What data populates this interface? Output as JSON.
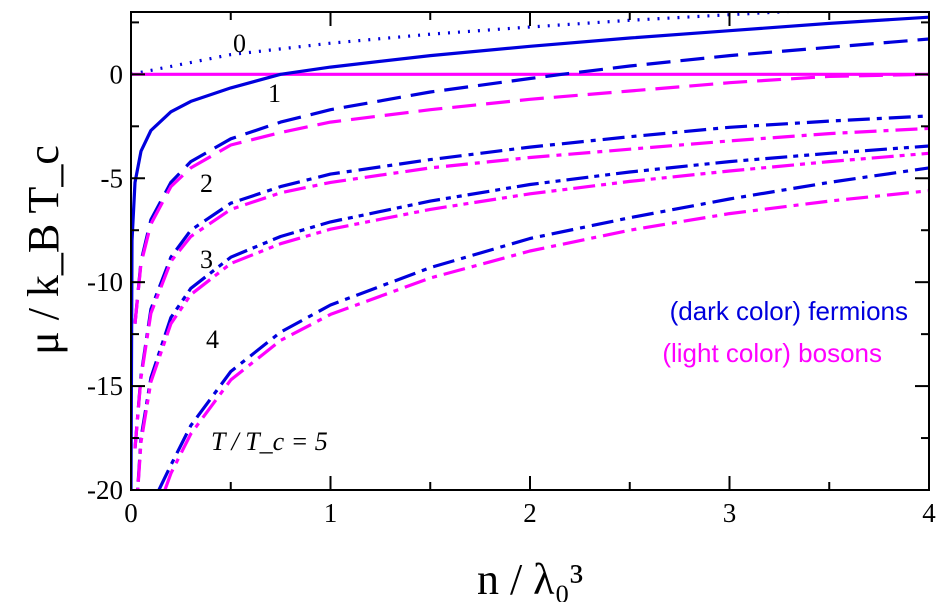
{
  "chart_data": {
    "type": "line",
    "xlabel": "n / λ₀³",
    "ylabel": "μ / k_B T_c",
    "xlim": [
      0,
      4
    ],
    "ylim": [
      -20,
      3
    ],
    "x_ticks": [
      "0",
      "1",
      "2",
      "3",
      "4"
    ],
    "y_ticks": [
      "0",
      "-5",
      "-10",
      "-15",
      "-20"
    ],
    "colors": {
      "fermions": "#0000dd",
      "bosons": "#ff00ff"
    },
    "legend": [
      "(dark color) fermions",
      "(light color) bosons"
    ],
    "curve_labels": [
      "0",
      "1",
      "2",
      "3",
      "4",
      "T / T_c = 5"
    ],
    "series": [
      {
        "T_over_Tc": 0,
        "species": "fermions",
        "style": "dotted",
        "x": [
          0.0,
          0.5,
          1.0,
          1.5,
          2.0,
          2.5,
          3.0,
          3.5,
          4.0
        ],
        "y": [
          0.0,
          0.95,
          1.5,
          1.93,
          2.28,
          2.6,
          2.87,
          3.13,
          3.37
        ]
      },
      {
        "T_over_Tc": 0,
        "species": "bosons",
        "style": "solid",
        "x": [
          0.0,
          4.0
        ],
        "y": [
          0.0,
          0.0
        ]
      },
      {
        "T_over_Tc": 1,
        "species": "fermions",
        "style": "solid",
        "x": [
          0.0,
          0.005,
          0.02,
          0.05,
          0.1,
          0.2,
          0.3,
          0.5,
          0.75,
          1.0,
          1.5,
          2.0,
          2.5,
          3.0,
          3.5,
          4.0
        ],
        "y": [
          -20.0,
          -8.0,
          -5.2,
          -3.7,
          -2.7,
          -1.8,
          -1.3,
          -0.65,
          0.0,
          0.35,
          0.9,
          1.35,
          1.75,
          2.1,
          2.45,
          2.75
        ]
      },
      {
        "T_over_Tc": 2,
        "species": "fermions",
        "style": "dashed",
        "x": [
          0.02,
          0.05,
          0.1,
          0.2,
          0.3,
          0.5,
          0.75,
          1.0,
          1.5,
          2.0,
          2.16,
          2.5,
          3.0,
          3.5,
          4.0
        ],
        "y": [
          -12.0,
          -9.0,
          -7.0,
          -5.2,
          -4.2,
          -3.1,
          -2.3,
          -1.7,
          -0.85,
          -0.2,
          0.0,
          0.4,
          0.9,
          1.3,
          1.7
        ]
      },
      {
        "T_over_Tc": 2,
        "species": "bosons",
        "style": "dashed",
        "x": [
          0.02,
          0.05,
          0.1,
          0.2,
          0.3,
          0.5,
          0.75,
          1.0,
          1.5,
          2.0,
          2.5,
          3.0,
          3.5,
          4.0
        ],
        "y": [
          -12.0,
          -9.1,
          -7.2,
          -5.4,
          -4.5,
          -3.4,
          -2.8,
          -2.3,
          -1.7,
          -1.2,
          -0.8,
          -0.4,
          -0.1,
          0.0
        ]
      },
      {
        "T_over_Tc": 3,
        "species": "fermions",
        "style": "dash-dot",
        "x": [
          0.02,
          0.05,
          0.1,
          0.2,
          0.3,
          0.5,
          0.75,
          1.0,
          1.5,
          2.0,
          2.5,
          3.0,
          3.5,
          4.0
        ],
        "y": [
          -18.0,
          -14.5,
          -11.3,
          -8.8,
          -7.5,
          -6.2,
          -5.4,
          -4.8,
          -4.1,
          -3.5,
          -3.0,
          -2.55,
          -2.25,
          -2.0
        ]
      },
      {
        "T_over_Tc": 3,
        "species": "bosons",
        "style": "dash-dot",
        "x": [
          0.02,
          0.05,
          0.1,
          0.2,
          0.3,
          0.5,
          0.75,
          1.0,
          1.5,
          2.0,
          2.5,
          3.0,
          3.5,
          4.0
        ],
        "y": [
          -18.0,
          -14.6,
          -11.5,
          -9.0,
          -7.8,
          -6.5,
          -5.7,
          -5.2,
          -4.5,
          -4.0,
          -3.6,
          -3.2,
          -2.85,
          -2.6
        ]
      },
      {
        "T_over_Tc": 4,
        "species": "fermions",
        "style": "dash-dot-dot",
        "x": [
          0.02,
          0.05,
          0.1,
          0.2,
          0.3,
          0.5,
          0.75,
          1.0,
          1.5,
          2.0,
          2.5,
          3.0,
          3.5,
          4.0
        ],
        "y": [
          -22.0,
          -17.5,
          -14.6,
          -11.7,
          -10.3,
          -8.8,
          -7.8,
          -7.1,
          -6.1,
          -5.3,
          -4.7,
          -4.2,
          -3.8,
          -3.45
        ]
      },
      {
        "T_over_Tc": 4,
        "species": "bosons",
        "style": "dash-dot-dot",
        "x": [
          0.02,
          0.05,
          0.1,
          0.2,
          0.3,
          0.5,
          0.75,
          1.0,
          1.5,
          2.0,
          2.5,
          3.0,
          3.5,
          4.0
        ],
        "y": [
          -22.0,
          -17.7,
          -14.8,
          -12.0,
          -10.6,
          -9.1,
          -8.15,
          -7.45,
          -6.5,
          -5.75,
          -5.15,
          -4.65,
          -4.2,
          -3.8
        ]
      },
      {
        "T_over_Tc": 5,
        "species": "fermions",
        "style": "dash-dot",
        "x": [
          0.14,
          0.2,
          0.3,
          0.5,
          0.75,
          1.0,
          1.5,
          2.0,
          2.5,
          3.0,
          3.5,
          4.0
        ],
        "y": [
          -20.0,
          -18.8,
          -16.9,
          -14.3,
          -12.4,
          -11.1,
          -9.3,
          -7.9,
          -6.9,
          -6.0,
          -5.2,
          -4.5
        ]
      },
      {
        "T_over_Tc": 5,
        "species": "bosons",
        "style": "dash-dot",
        "x": [
          0.17,
          0.2,
          0.3,
          0.5,
          0.75,
          1.0,
          1.5,
          2.0,
          2.5,
          3.0,
          3.5,
          4.0
        ],
        "y": [
          -20.0,
          -19.2,
          -17.3,
          -14.7,
          -12.8,
          -11.55,
          -9.8,
          -8.5,
          -7.5,
          -6.7,
          -6.1,
          -5.6
        ]
      }
    ]
  }
}
